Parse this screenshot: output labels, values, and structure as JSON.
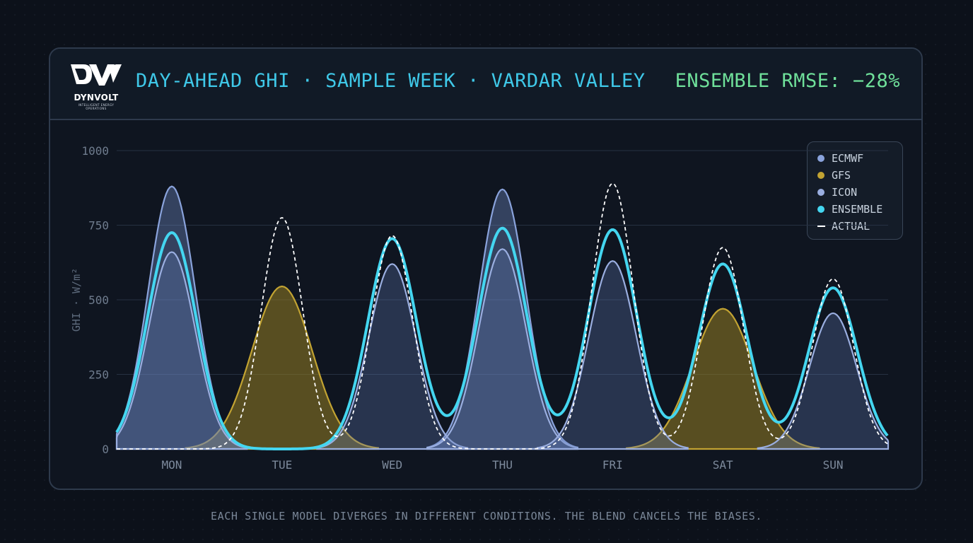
{
  "logo": {
    "wordmark": "DYNVOLT",
    "tagline": "INTELLIGENT ENERGY OPERATIONS"
  },
  "header": {
    "title": "DAY-AHEAD GHI · SAMPLE WEEK · VARDAR VALLEY",
    "metric": "ENSEMBLE RMSE: −28%"
  },
  "caption": "EACH SINGLE MODEL DIVERGES IN DIFFERENT CONDITIONS. THE BLEND CANCELS THE BIASES.",
  "colors": {
    "ecmwf": "#8aa3dc",
    "gfs": "#c2a332",
    "icon": "#9aaee0",
    "ensemble": "#44d6f0",
    "actual": "#ffffff",
    "title": "#3fc8e8",
    "metric": "#6fe09a"
  },
  "chart_data": {
    "type": "area",
    "ylabel": "GHI · W/m²",
    "ylim": [
      0,
      1000
    ],
    "yticks": [
      0,
      250,
      500,
      750,
      1000
    ],
    "categories": [
      "MON",
      "TUE",
      "WED",
      "THU",
      "FRI",
      "SAT",
      "SUN"
    ],
    "grid": true,
    "legend_position": "top-right",
    "series": [
      {
        "name": "ECMWF",
        "style": "filled-area",
        "color": "#8aa3dc",
        "values": [
          880,
          null,
          null,
          870,
          null,
          null,
          null
        ]
      },
      {
        "name": "GFS",
        "style": "filled-area",
        "color": "#c2a332",
        "values": [
          null,
          545,
          null,
          null,
          null,
          470,
          null
        ]
      },
      {
        "name": "ICON",
        "style": "filled-area",
        "color": "#9aaee0",
        "values": [
          660,
          null,
          620,
          670,
          630,
          null,
          455
        ]
      },
      {
        "name": "ENSEMBLE",
        "style": "line",
        "color": "#44d6f0",
        "values": [
          725,
          0,
          705,
          740,
          735,
          620,
          540
        ]
      },
      {
        "name": "ACTUAL",
        "style": "dashed",
        "color": "#ffffff",
        "values": [
          null,
          775,
          715,
          null,
          890,
          675,
          570
        ]
      }
    ]
  }
}
